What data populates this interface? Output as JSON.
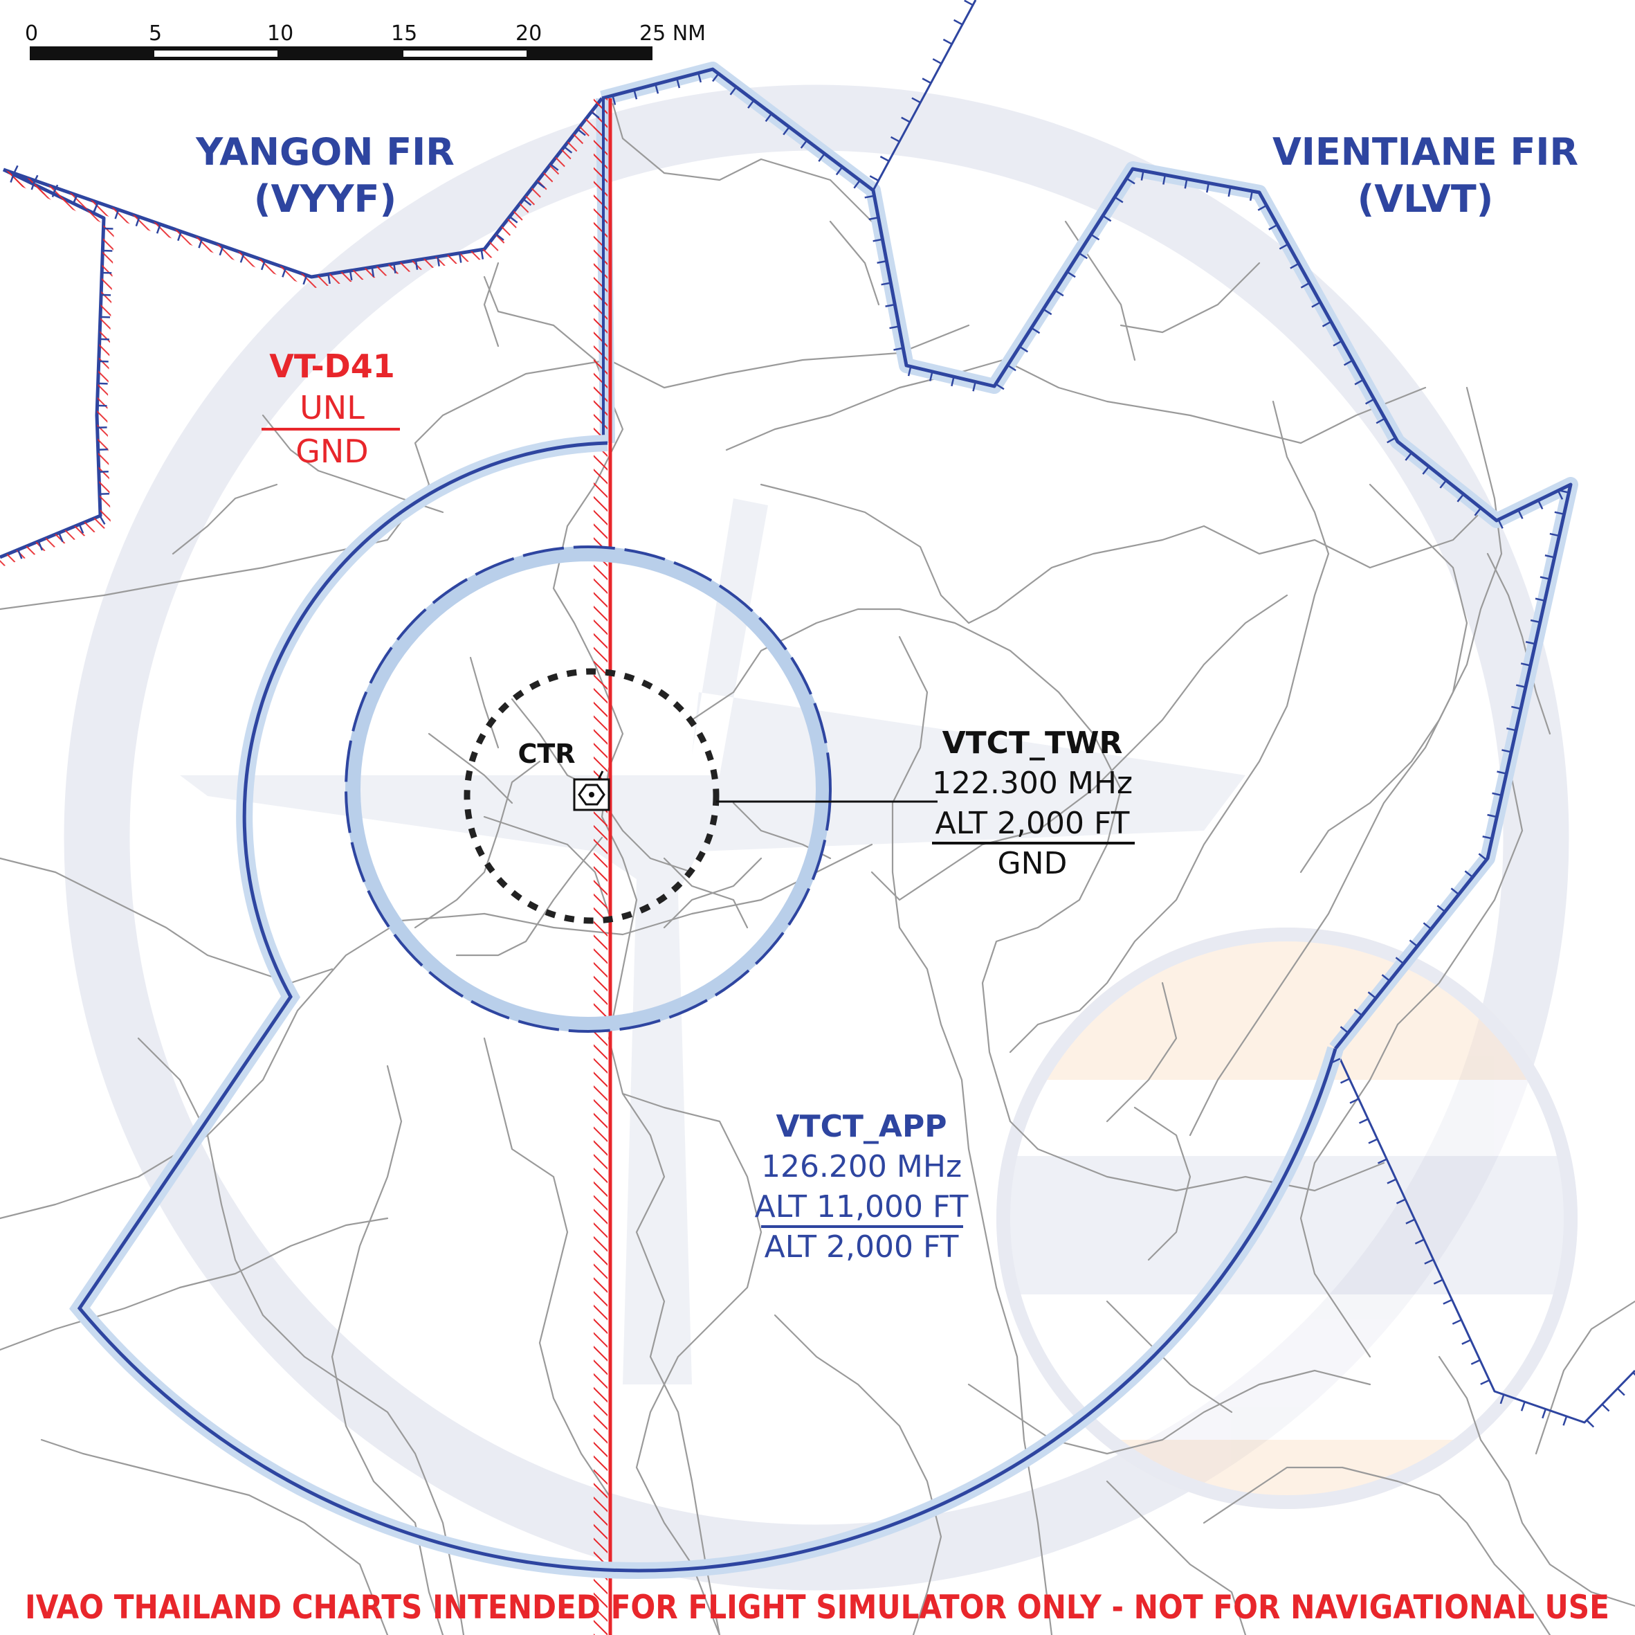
{
  "scale_bar": {
    "ticks": [
      "0",
      "5",
      "10",
      "15",
      "20",
      "25 NM"
    ]
  },
  "fir_labels": {
    "yangon": {
      "line1": "YANGON FIR",
      "line2": "(VYYF)"
    },
    "vientiane": {
      "line1": "VIENTIANE FIR",
      "line2": "(VLVT)"
    }
  },
  "restricted_area": {
    "name": "VT-D41",
    "upper": "UNL",
    "lower": "GND"
  },
  "ctr": {
    "label": "CTR"
  },
  "tower": {
    "callsign": "VTCT_TWR",
    "frequency": "122.300 MHz",
    "upper": "ALT 2,000 FT",
    "lower": "GND"
  },
  "approach": {
    "callsign": "VTCT_APP",
    "frequency": "126.200 MHz",
    "upper": "ALT 11,000 FT",
    "lower": "ALT 2,000 FT"
  },
  "disclaimer": "IVAO THAILAND CHARTS INTENDED FOR FLIGHT SIMULATOR ONLY - NOT FOR NAVIGATIONAL USE",
  "colors": {
    "airspace_blue": "#2e45a0",
    "airspace_fill_light": "#c9dbf0",
    "restricted_red": "#e8262b",
    "roads_grey": "#9a9a9a",
    "watermark": "#e8eaf2",
    "text_black": "#111111"
  },
  "icons": {
    "airport": "airport-symbol-icon"
  }
}
